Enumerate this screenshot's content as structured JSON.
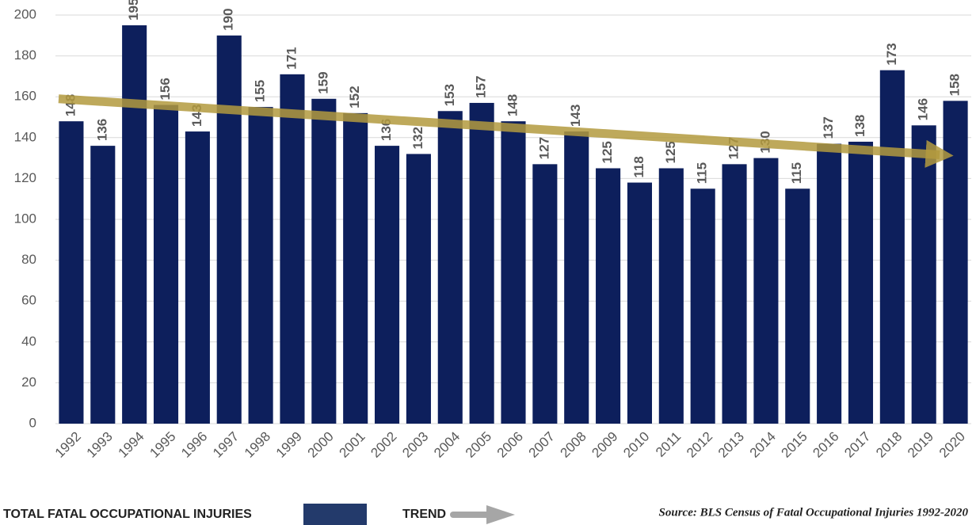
{
  "chart_data": {
    "type": "bar",
    "categories": [
      "1992",
      "1993",
      "1994",
      "1995",
      "1996",
      "1997",
      "1998",
      "1999",
      "2000",
      "2001",
      "2002",
      "2003",
      "2004",
      "2005",
      "2006",
      "2007",
      "2008",
      "2009",
      "2010",
      "2011",
      "2012",
      "2013",
      "2014",
      "2015",
      "2016",
      "2017",
      "2018",
      "2019",
      "2020"
    ],
    "series": [
      {
        "name": "TOTAL FATAL OCCUPATIONAL INJURIES",
        "color": "#0d1f5c",
        "values": [
          148,
          136,
          195,
          156,
          143,
          190,
          155,
          171,
          159,
          152,
          136,
          132,
          153,
          157,
          148,
          127,
          143,
          125,
          118,
          125,
          115,
          127,
          130,
          115,
          137,
          138,
          173,
          146,
          158
        ]
      }
    ],
    "trend": {
      "name": "TREND",
      "color": "#b39a3e",
      "values": [
        159,
        131
      ]
    },
    "ylim": [
      0,
      200
    ],
    "yticks": [
      0,
      20,
      40,
      60,
      80,
      100,
      120,
      140,
      160,
      180,
      200
    ],
    "grid": true,
    "source": "Source: BLS Census of Fatal Occupational Injuries 1992-2020"
  }
}
